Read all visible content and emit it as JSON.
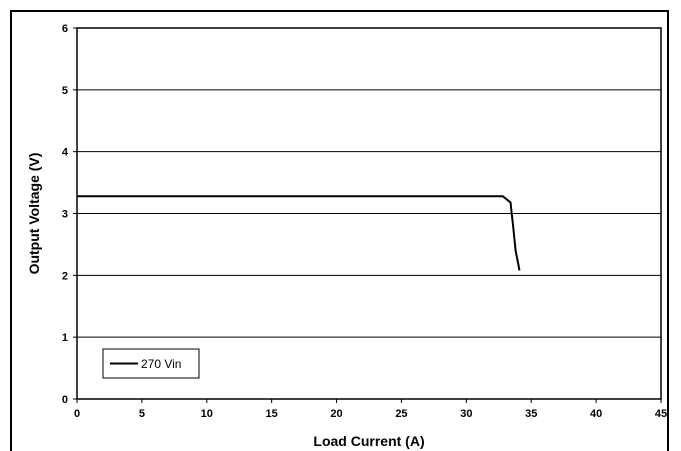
{
  "chart_data": {
    "type": "line",
    "title": "",
    "xlabel": "Load Current (A)",
    "ylabel": "Output Voltage (V)",
    "xlim": [
      0,
      45
    ],
    "ylim": [
      0,
      6
    ],
    "xticks": [
      0,
      5,
      10,
      15,
      20,
      25,
      30,
      35,
      40,
      45
    ],
    "yticks": [
      0,
      1,
      2,
      3,
      4,
      5,
      6
    ],
    "grid": "horizontal",
    "legend_position": "bottom-left",
    "series": [
      {
        "name": "270 Vin",
        "color": "#000000",
        "x": [
          0,
          32.8,
          33.4,
          33.6,
          33.8,
          34.1
        ],
        "y": [
          3.28,
          3.28,
          3.18,
          2.8,
          2.4,
          2.08
        ]
      }
    ]
  }
}
